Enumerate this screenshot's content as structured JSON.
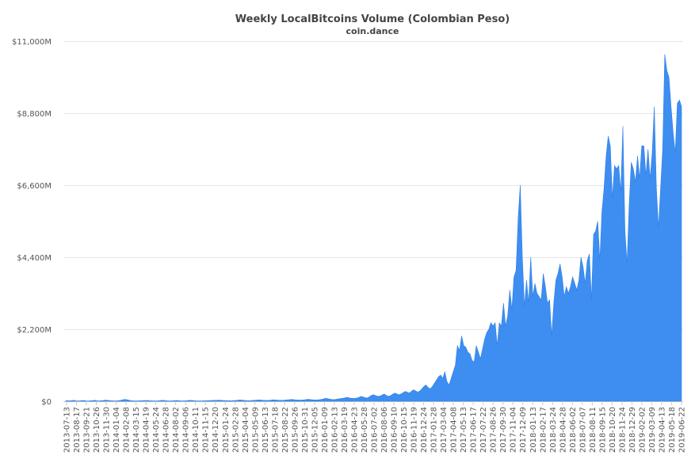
{
  "chart_data": {
    "type": "area",
    "title": "Weekly LocalBitcoins Volume (Colombian Peso)",
    "subtitle": "coin.dance",
    "xlabel": "",
    "ylabel": "",
    "ylim": [
      0,
      11000
    ],
    "y_unit": "M COP",
    "y_ticks": [
      {
        "value": 0,
        "label": "$0"
      },
      {
        "value": 2200,
        "label": "$2,200M"
      },
      {
        "value": 4400,
        "label": "$4,400M"
      },
      {
        "value": 6600,
        "label": "$6,600M"
      },
      {
        "value": 8800,
        "label": "$8,800M"
      },
      {
        "value": 11000,
        "label": "$11,000M"
      }
    ],
    "x_tick_labels": [
      "2013-07-13",
      "2013-08-17",
      "2013-09-21",
      "2013-10-26",
      "2013-11-30",
      "2014-01-04",
      "2014-02-08",
      "2014-03-15",
      "2014-04-19",
      "2014-05-24",
      "2014-06-28",
      "2014-08-02",
      "2014-09-06",
      "2014-10-11",
      "2014-11-15",
      "2014-12-20",
      "2015-01-24",
      "2015-02-28",
      "2015-04-04",
      "2015-05-09",
      "2015-06-13",
      "2015-07-18",
      "2015-08-22",
      "2015-09-26",
      "2015-10-31",
      "2015-12-05",
      "2016-01-09",
      "2016-02-13",
      "2016-03-19",
      "2016-04-23",
      "2016-05-28",
      "2016-07-02",
      "2016-08-06",
      "2016-09-10",
      "2016-10-15",
      "2016-11-19",
      "2016-12-24",
      "2017-01-28",
      "2017-03-04",
      "2017-04-08",
      "2017-05-13",
      "2017-06-17",
      "2017-07-22",
      "2017-08-26",
      "2017-09-30",
      "2017-11-04",
      "2017-12-09",
      "2018-01-13",
      "2018-02-17",
      "2018-03-24",
      "2018-04-28",
      "2018-06-02",
      "2018-07-07",
      "2018-08-11",
      "2018-09-15",
      "2018-10-20",
      "2018-11-24",
      "2018-12-29",
      "2019-02-02",
      "2019-03-09",
      "2019-04-13",
      "2019-05-18",
      "2019-06-22"
    ],
    "series": [
      {
        "color": "#3d8ef0",
        "values": [
          20,
          18,
          15,
          22,
          30,
          12,
          10,
          15,
          25,
          20,
          8,
          12,
          18,
          22,
          30,
          15,
          10,
          20,
          25,
          35,
          28,
          20,
          15,
          10,
          12,
          18,
          25,
          40,
          55,
          50,
          35,
          20,
          15,
          10,
          12,
          15,
          18,
          20,
          22,
          25,
          18,
          15,
          12,
          10,
          14,
          20,
          30,
          25,
          18,
          12,
          10,
          15,
          20,
          25,
          18,
          12,
          10,
          15,
          20,
          28,
          25,
          20,
          15,
          12,
          10,
          12,
          15,
          18,
          20,
          22,
          25,
          28,
          30,
          35,
          30,
          25,
          22,
          20,
          18,
          15,
          20,
          25,
          30,
          40,
          35,
          28,
          22,
          20,
          18,
          25,
          30,
          35,
          40,
          38,
          32,
          28,
          25,
          30,
          35,
          45,
          40,
          35,
          30,
          28,
          32,
          38,
          45,
          50,
          55,
          48,
          42,
          38,
          35,
          40,
          45,
          55,
          60,
          50,
          45,
          40,
          42,
          48,
          55,
          70,
          90,
          80,
          65,
          55,
          50,
          60,
          70,
          80,
          90,
          100,
          120,
          110,
          95,
          85,
          90,
          100,
          120,
          150,
          130,
          110,
          100,
          140,
          180,
          200,
          170,
          150,
          160,
          190,
          220,
          180,
          150,
          170,
          210,
          250,
          230,
          200,
          220,
          260,
          300,
          280,
          250,
          300,
          350,
          320,
          280,
          310,
          380,
          450,
          500,
          420,
          380,
          450,
          550,
          650,
          750,
          800,
          700,
          900,
          600,
          500,
          700,
          900,
          1100,
          1700,
          1550,
          2000,
          1700,
          1650,
          1500,
          1450,
          1250,
          1200,
          1700,
          1500,
          1300,
          1600,
          1900,
          2100,
          2200,
          2400,
          2300,
          2400,
          1700,
          2400,
          2300,
          3000,
          2300,
          2600,
          3400,
          2800,
          3800,
          4000,
          5600,
          6600,
          4400,
          2900,
          3700,
          3000,
          4400,
          3200,
          3600,
          3300,
          3200,
          3100,
          3900,
          3500,
          3000,
          3100,
          2000,
          3000,
          3700,
          3900,
          4200,
          3800,
          3200,
          3500,
          3300,
          3500,
          3800,
          3600,
          3400,
          3700,
          4400,
          4100,
          3600,
          4300,
          4500,
          3100,
          5100,
          5200,
          5500,
          4300,
          5800,
          6500,
          7500,
          8100,
          7800,
          6200,
          7200,
          7100,
          7200,
          6400,
          8400,
          5200,
          4200,
          6000,
          7300,
          7100,
          6700,
          7500,
          6800,
          7800,
          7800,
          6900,
          7700,
          6800,
          7600,
          9000,
          6500,
          5300,
          6500,
          7700,
          10600,
          10100,
          9900,
          9000,
          8200,
          7600,
          9100,
          9200,
          9000
        ]
      }
    ]
  }
}
